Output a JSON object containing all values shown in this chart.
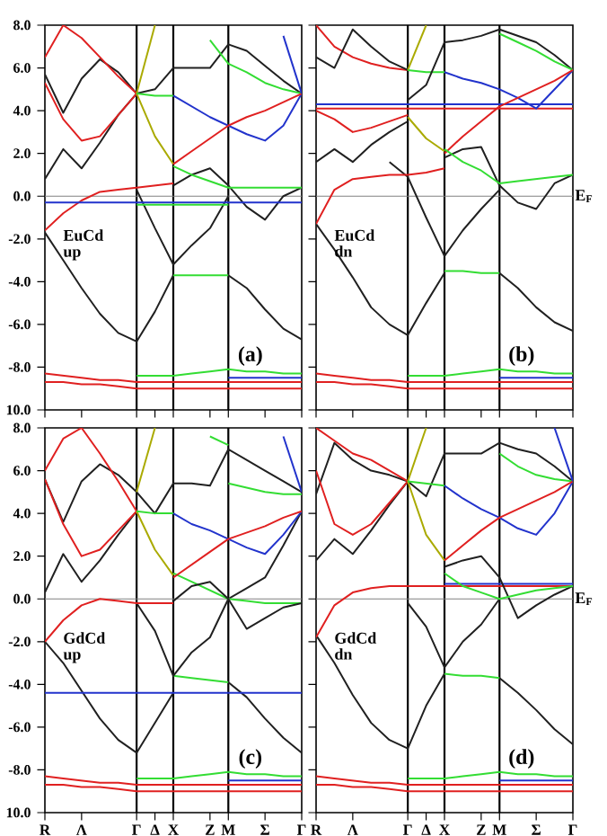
{
  "chart_data": [
    {
      "type": "line",
      "annotations": [
        "EuCd up",
        "(a)"
      ],
      "ylim": [
        -10,
        8
      ],
      "tick_labels": "y",
      "categories": [
        "R",
        null,
        "Λ",
        null,
        null,
        "Γ",
        "Δ",
        "X",
        null,
        "Z",
        "M",
        null,
        "Σ",
        null,
        "Γ"
      ],
      "yticks": [
        {
          "value": 8,
          "label": "8.0"
        },
        {
          "value": 6,
          "label": "6.0"
        },
        {
          "value": 4,
          "label": "4.0"
        },
        {
          "value": 2,
          "label": "2.0"
        },
        {
          "value": 0,
          "label": "0.0"
        },
        {
          "value": -2,
          "label": "-2.0"
        },
        {
          "value": -4,
          "label": "-4.0"
        },
        {
          "value": -6,
          "label": "-6.0"
        },
        {
          "value": -8,
          "label": "-8.0"
        },
        {
          "value": -10,
          "label": "10.0"
        }
      ],
      "ref_lines": [
        {
          "axis": "x",
          "value": "Γ",
          "color": "#000000"
        },
        {
          "axis": "x",
          "value": "X",
          "color": "#000000"
        },
        {
          "axis": "x",
          "value": "M",
          "color": "#000000"
        },
        {
          "axis": "y",
          "value": 0,
          "color": "#808080"
        }
      ],
      "series": [
        {
          "color": "#202020",
          "values": [
            -1.7,
            -3.0,
            -4.3,
            -5.5,
            -6.4,
            -6.8,
            -5.4,
            -3.7,
            null,
            null,
            null,
            null,
            null,
            null,
            null
          ]
        },
        {
          "color": "#33dd33",
          "values": [
            null,
            null,
            null,
            null,
            null,
            null,
            null,
            -3.7,
            -3.7,
            -3.7,
            -3.7,
            null,
            null,
            null,
            null
          ]
        },
        {
          "color": "#202020",
          "values": [
            null,
            null,
            null,
            null,
            null,
            null,
            null,
            null,
            null,
            null,
            -3.7,
            -4.3,
            -5.3,
            -6.2,
            -6.7
          ]
        },
        {
          "color": "#202020",
          "values": [
            null,
            null,
            null,
            null,
            null,
            0.3,
            -1.5,
            -3.2,
            -2.3,
            -1.5,
            0.0,
            null,
            null,
            null,
            null
          ]
        },
        {
          "color": "#202020",
          "values": [
            null,
            null,
            null,
            null,
            null,
            null,
            null,
            0.5,
            1.0,
            1.3,
            0.5,
            -0.5,
            -1.1,
            0.0,
            0.4
          ]
        },
        {
          "color": "#202020",
          "values": [
            5.7,
            3.9,
            5.5,
            6.4,
            5.8,
            4.8,
            null,
            null,
            null,
            null,
            null,
            null,
            null,
            null,
            null
          ]
        },
        {
          "color": "#202020",
          "values": [
            0.8,
            2.2,
            1.3,
            2.5,
            3.8,
            4.8,
            5.0,
            6.0,
            6.0,
            6.0,
            7.1,
            6.8,
            6.1,
            5.4,
            4.8
          ]
        },
        {
          "color": "#e02020",
          "values": [
            6.5,
            8.0,
            7.4,
            6.5,
            5.6,
            4.8,
            null,
            null,
            null,
            null,
            null,
            null,
            null,
            null,
            null
          ]
        },
        {
          "color": "#e02020",
          "values": [
            5.3,
            3.6,
            2.6,
            2.8,
            3.8,
            4.8,
            null,
            null,
            null,
            null,
            null,
            null,
            null,
            null,
            null
          ]
        },
        {
          "color": "#aaaa00",
          "values": [
            null,
            null,
            null,
            null,
            null,
            4.8,
            8.0,
            null,
            null,
            null,
            null,
            null,
            null,
            null,
            null
          ]
        },
        {
          "color": "#aaaa00",
          "values": [
            null,
            null,
            null,
            null,
            null,
            4.8,
            2.8,
            1.5,
            null,
            null,
            null,
            null,
            null,
            null,
            null
          ]
        },
        {
          "color": "#33dd33",
          "values": [
            null,
            null,
            null,
            null,
            null,
            4.8,
            4.7,
            4.7,
            null,
            null,
            null,
            null,
            null,
            null,
            null
          ]
        },
        {
          "color": "#2233cc",
          "values": [
            null,
            null,
            null,
            null,
            null,
            null,
            null,
            4.7,
            4.2,
            3.7,
            3.3,
            2.9,
            2.6,
            3.3,
            4.8
          ]
        },
        {
          "color": "#33dd33",
          "values": [
            null,
            null,
            null,
            null,
            null,
            null,
            null,
            null,
            null,
            7.3,
            6.2,
            5.8,
            5.3,
            5.0,
            4.8
          ]
        },
        {
          "color": "#e02020",
          "values": [
            null,
            null,
            null,
            null,
            null,
            null,
            null,
            1.5,
            2.1,
            2.7,
            3.3,
            3.7,
            4.0,
            4.4,
            4.8
          ]
        },
        {
          "color": "#33dd33",
          "values": [
            null,
            null,
            null,
            null,
            null,
            null,
            null,
            1.4,
            1.0,
            0.7,
            0.4,
            0.4,
            0.4,
            0.4,
            0.4
          ]
        },
        {
          "color": "#e02020",
          "values": [
            -1.6,
            -0.8,
            -0.2,
            0.2,
            0.3,
            0.4,
            0.5,
            0.6,
            null,
            null,
            null,
            null,
            null,
            null,
            null
          ]
        },
        {
          "color": "#2233cc",
          "values": [
            -0.3,
            -0.3,
            -0.3,
            -0.3,
            -0.3,
            -0.3,
            -0.3,
            -0.3,
            -0.3,
            -0.3,
            -0.3,
            -0.3,
            -0.3,
            -0.3,
            -0.3
          ]
        },
        {
          "color": "#33dd33",
          "values": [
            null,
            null,
            null,
            null,
            null,
            -0.4,
            -0.4,
            -0.4,
            -0.4,
            -0.4,
            -0.4,
            null,
            null,
            null,
            null
          ]
        },
        {
          "color": "#2233cc",
          "values": [
            null,
            null,
            null,
            null,
            null,
            null,
            null,
            null,
            null,
            null,
            null,
            null,
            null,
            7.5,
            4.8
          ]
        },
        {
          "color": "#e02020",
          "values": [
            -8.3,
            -8.4,
            -8.5,
            -8.6,
            -8.6,
            -8.7,
            -8.7,
            -8.7,
            -8.7,
            -8.7,
            -8.7,
            -8.7,
            -8.7,
            -8.7,
            -8.7
          ]
        },
        {
          "color": "#e02020",
          "values": [
            -8.7,
            -8.7,
            -8.8,
            -8.8,
            -8.9,
            -9.0,
            -9.0,
            -9.0,
            -9.0,
            -9.0,
            -9.0,
            -9.0,
            -9.0,
            -9.0,
            -9.0
          ]
        },
        {
          "color": "#33dd33",
          "values": [
            null,
            null,
            null,
            null,
            null,
            -8.4,
            -8.4,
            -8.4,
            -8.3,
            -8.2,
            -8.1,
            -8.2,
            -8.2,
            -8.3,
            -8.3
          ]
        },
        {
          "color": "#2233cc",
          "values": [
            null,
            null,
            null,
            null,
            null,
            null,
            null,
            null,
            null,
            null,
            -8.5,
            -8.5,
            -8.5,
            -8.5,
            -8.5
          ]
        }
      ]
    },
    {
      "type": "line",
      "annotations": [
        "EuCd dn",
        "(b)"
      ],
      "ylim": [
        -10,
        8
      ],
      "tick_labels": false,
      "categories": [
        "R",
        null,
        "Λ",
        null,
        null,
        "Γ",
        "Δ",
        "X",
        null,
        "Z",
        "M",
        null,
        "Σ",
        null,
        "Γ"
      ],
      "yticks": [
        {
          "value": 8,
          "label": null
        },
        {
          "value": 6,
          "label": null
        },
        {
          "value": 4,
          "label": null
        },
        {
          "value": 2,
          "label": null
        },
        {
          "value": 0,
          "label": null
        },
        {
          "value": -2,
          "label": null
        },
        {
          "value": -4,
          "label": null
        },
        {
          "value": -6,
          "label": null
        },
        {
          "value": -8,
          "label": null
        },
        {
          "value": -10,
          "label": null
        }
      ],
      "ref_lines": [
        {
          "axis": "x",
          "value": "Γ",
          "color": "#000000"
        },
        {
          "axis": "x",
          "value": "X",
          "color": "#000000"
        },
        {
          "axis": "x",
          "value": "M",
          "color": "#000000"
        },
        {
          "axis": "y",
          "value": 0,
          "color": "#808080",
          "label": "E$_{F}$"
        }
      ],
      "series": [
        {
          "color": "#202020",
          "values": [
            -1.3,
            -2.5,
            -3.8,
            -5.2,
            -6.0,
            -6.5,
            -5.0,
            -3.6,
            null,
            null,
            null,
            null,
            null,
            null,
            null
          ]
        },
        {
          "color": "#33dd33",
          "values": [
            null,
            null,
            null,
            null,
            null,
            null,
            null,
            -3.5,
            -3.5,
            -3.6,
            -3.6,
            null,
            null,
            null,
            null
          ]
        },
        {
          "color": "#202020",
          "values": [
            null,
            null,
            null,
            null,
            null,
            null,
            null,
            null,
            null,
            null,
            -3.6,
            -4.3,
            -5.2,
            -5.9,
            -6.3
          ]
        },
        {
          "color": "#202020",
          "values": [
            null,
            null,
            null,
            null,
            1.6,
            0.9,
            -1.0,
            -2.8,
            -1.6,
            -0.6,
            0.3,
            null,
            null,
            null,
            null
          ]
        },
        {
          "color": "#e02020",
          "values": [
            -1.3,
            0.3,
            0.8,
            0.9,
            1.0,
            1.0,
            1.1,
            1.3,
            null,
            null,
            null,
            null,
            null,
            null,
            null
          ]
        },
        {
          "color": "#202020",
          "values": [
            1.6,
            2.2,
            1.6,
            2.4,
            3.0,
            3.5,
            null,
            null,
            null,
            null,
            null,
            null,
            null,
            null,
            null
          ]
        },
        {
          "color": "#e02020",
          "values": [
            4.0,
            3.6,
            3.0,
            3.2,
            3.5,
            3.8,
            null,
            null,
            null,
            null,
            null,
            null,
            null,
            null,
            null
          ]
        },
        {
          "color": "#2233cc",
          "values": [
            4.3,
            4.3,
            4.3,
            4.3,
            4.3,
            4.3,
            4.3,
            4.3,
            4.3,
            4.3,
            4.3,
            4.3,
            4.3,
            4.3,
            4.3
          ]
        },
        {
          "color": "#e02020",
          "values": [
            4.1,
            4.1,
            4.1,
            4.1,
            4.1,
            4.1,
            4.1,
            4.1,
            4.1,
            4.1,
            4.1,
            4.1,
            4.1,
            4.1,
            4.1
          ]
        },
        {
          "color": "#e02020",
          "values": [
            8.0,
            7.0,
            6.5,
            6.2,
            6.0,
            5.9,
            null,
            null,
            null,
            null,
            null,
            null,
            null,
            null,
            null
          ]
        },
        {
          "color": "#202020",
          "values": [
            6.5,
            6.0,
            7.8,
            7.0,
            6.3,
            5.9,
            null,
            null,
            null,
            null,
            null,
            null,
            null,
            null,
            null
          ]
        },
        {
          "color": "#aaaa00",
          "values": [
            null,
            null,
            null,
            null,
            null,
            5.9,
            8.0,
            null,
            null,
            null,
            null,
            null,
            null,
            null,
            null
          ]
        },
        {
          "color": "#aaaa00",
          "values": [
            null,
            null,
            null,
            null,
            null,
            3.7,
            2.7,
            2.1,
            null,
            null,
            null,
            null,
            null,
            null,
            null
          ]
        },
        {
          "color": "#33dd33",
          "values": [
            null,
            null,
            null,
            null,
            null,
            5.9,
            5.8,
            5.8,
            null,
            null,
            null,
            null,
            null,
            null,
            null
          ]
        },
        {
          "color": "#2233cc",
          "values": [
            null,
            null,
            null,
            null,
            null,
            null,
            null,
            5.8,
            5.5,
            5.3,
            5.0,
            4.6,
            4.1,
            5.0,
            5.9
          ]
        },
        {
          "color": "#202020",
          "values": [
            null,
            null,
            null,
            null,
            null,
            4.5,
            5.2,
            7.2,
            7.3,
            7.5,
            7.8,
            7.5,
            7.2,
            6.6,
            5.9
          ]
        },
        {
          "color": "#33dd33",
          "values": [
            null,
            null,
            null,
            null,
            null,
            null,
            null,
            null,
            null,
            null,
            7.6,
            7.2,
            6.8,
            6.3,
            5.9
          ]
        },
        {
          "color": "#e02020",
          "values": [
            null,
            null,
            null,
            null,
            null,
            null,
            null,
            2.0,
            2.8,
            3.5,
            4.2,
            4.6,
            5.0,
            5.4,
            5.9
          ]
        },
        {
          "color": "#202020",
          "values": [
            null,
            null,
            null,
            null,
            null,
            null,
            null,
            1.8,
            2.2,
            2.3,
            0.5,
            -0.3,
            -0.6,
            0.6,
            1.0
          ]
        },
        {
          "color": "#33dd33",
          "values": [
            null,
            null,
            null,
            null,
            null,
            null,
            null,
            2.2,
            1.6,
            1.2,
            0.6,
            0.7,
            0.8,
            0.9,
            1.0
          ]
        },
        {
          "color": "#e02020",
          "values": [
            -8.3,
            -8.4,
            -8.5,
            -8.6,
            -8.6,
            -8.7,
            -8.7,
            -8.7,
            -8.7,
            -8.7,
            -8.7,
            -8.7,
            -8.7,
            -8.7,
            -8.7
          ]
        },
        {
          "color": "#e02020",
          "values": [
            -8.7,
            -8.7,
            -8.8,
            -8.8,
            -8.9,
            -9.0,
            -9.0,
            -9.0,
            -9.0,
            -9.0,
            -9.0,
            -9.0,
            -9.0,
            -9.0,
            -9.0
          ]
        },
        {
          "color": "#33dd33",
          "values": [
            null,
            null,
            null,
            null,
            null,
            -8.4,
            -8.4,
            -8.4,
            -8.3,
            -8.2,
            -8.1,
            -8.2,
            -8.2,
            -8.3,
            -8.3
          ]
        },
        {
          "color": "#2233cc",
          "values": [
            null,
            null,
            null,
            null,
            null,
            null,
            null,
            null,
            null,
            null,
            -8.5,
            -8.5,
            -8.5,
            -8.5,
            -8.5
          ]
        }
      ]
    },
    {
      "type": "line",
      "annotations": [
        "GdCd up",
        "(c)"
      ],
      "ylim": [
        -10,
        8
      ],
      "categories": [
        "R",
        null,
        "Λ",
        null,
        null,
        "Γ",
        "Δ",
        "X",
        null,
        "Z",
        "M",
        null,
        "Σ",
        null,
        "Γ"
      ],
      "yticks": [
        {
          "value": 8,
          "label": "8.0"
        },
        {
          "value": 6,
          "label": "6.0"
        },
        {
          "value": 4,
          "label": "4.0"
        },
        {
          "value": 2,
          "label": "2.0"
        },
        {
          "value": 0,
          "label": "0.0"
        },
        {
          "value": -2,
          "label": "-2.0"
        },
        {
          "value": -4,
          "label": "-4.0"
        },
        {
          "value": -6,
          "label": "-6.0"
        },
        {
          "value": -8,
          "label": "-8.0"
        },
        {
          "value": -10,
          "label": "10.0"
        }
      ],
      "ref_lines": [
        {
          "axis": "x",
          "value": "Γ",
          "color": "#000000"
        },
        {
          "axis": "x",
          "value": "X",
          "color": "#000000"
        },
        {
          "axis": "x",
          "value": "M",
          "color": "#000000"
        },
        {
          "axis": "y",
          "value": 0,
          "color": "#808080"
        }
      ],
      "series": [
        {
          "color": "#202020",
          "values": [
            -2.0,
            -3.0,
            -4.3,
            -5.6,
            -6.6,
            -7.2,
            -5.8,
            -4.4,
            null,
            null,
            null,
            null,
            null,
            null,
            null
          ]
        },
        {
          "color": "#33dd33",
          "values": [
            null,
            null,
            null,
            null,
            null,
            null,
            null,
            -3.6,
            -3.7,
            -3.8,
            -3.9,
            null,
            null,
            null,
            null
          ]
        },
        {
          "color": "#202020",
          "values": [
            null,
            null,
            null,
            null,
            null,
            null,
            null,
            null,
            null,
            null,
            -3.9,
            -4.6,
            -5.6,
            -6.5,
            -7.2
          ]
        },
        {
          "color": "#202020",
          "values": [
            null,
            null,
            null,
            null,
            null,
            -0.2,
            -1.5,
            -3.6,
            -2.5,
            -1.8,
            0.0,
            0.5,
            1.0,
            2.5,
            4.1
          ]
        },
        {
          "color": "#e02020",
          "values": [
            -2.0,
            -1.0,
            -0.3,
            0.0,
            -0.1,
            -0.2,
            -0.2,
            -0.2,
            null,
            null,
            null,
            null,
            null,
            null,
            null
          ]
        },
        {
          "color": "#2233cc",
          "values": [
            -4.4,
            -4.4,
            -4.4,
            -4.4,
            -4.4,
            -4.4,
            -4.4,
            -4.4,
            -4.4,
            -4.4,
            -4.4,
            -4.4,
            -4.4,
            -4.4,
            -4.4
          ]
        },
        {
          "color": "#202020",
          "values": [
            0.3,
            2.1,
            0.8,
            1.8,
            3.0,
            4.1,
            null,
            null,
            null,
            null,
            null,
            null,
            null,
            null,
            null
          ]
        },
        {
          "color": "#202020",
          "values": [
            5.6,
            3.6,
            5.5,
            6.3,
            5.8,
            5.0,
            4.0,
            5.4,
            5.4,
            5.3,
            7.0,
            6.5,
            6.0,
            5.5,
            5.0
          ]
        },
        {
          "color": "#e02020",
          "values": [
            6.0,
            7.5,
            8.0,
            6.8,
            5.5,
            4.1,
            null,
            null,
            null,
            null,
            null,
            null,
            null,
            null,
            null
          ]
        },
        {
          "color": "#e02020",
          "values": [
            5.6,
            3.5,
            2.0,
            2.3,
            3.2,
            4.1,
            null,
            null,
            null,
            null,
            null,
            null,
            null,
            null,
            null
          ]
        },
        {
          "color": "#aaaa00",
          "values": [
            null,
            null,
            null,
            null,
            null,
            5.0,
            8.0,
            null,
            null,
            null,
            null,
            null,
            null,
            null,
            null
          ]
        },
        {
          "color": "#aaaa00",
          "values": [
            null,
            null,
            null,
            null,
            null,
            4.1,
            2.3,
            1.1,
            null,
            null,
            null,
            null,
            null,
            null,
            null
          ]
        },
        {
          "color": "#33dd33",
          "values": [
            null,
            null,
            null,
            null,
            null,
            4.1,
            4.0,
            4.0,
            null,
            null,
            null,
            null,
            null,
            null,
            null
          ]
        },
        {
          "color": "#2233cc",
          "values": [
            null,
            null,
            null,
            null,
            null,
            null,
            null,
            4.0,
            3.5,
            3.2,
            2.8,
            2.4,
            2.1,
            3.0,
            4.1
          ]
        },
        {
          "color": "#33dd33",
          "values": [
            null,
            null,
            null,
            null,
            null,
            null,
            null,
            null,
            null,
            null,
            5.4,
            5.2,
            5.0,
            4.9,
            4.9
          ]
        },
        {
          "color": "#33dd33",
          "values": [
            null,
            null,
            null,
            null,
            null,
            null,
            null,
            1.2,
            0.8,
            0.4,
            0.0,
            -0.1,
            -0.2,
            -0.2,
            -0.2
          ]
        },
        {
          "color": "#e02020",
          "values": [
            null,
            null,
            null,
            null,
            null,
            null,
            null,
            1.0,
            1.6,
            2.2,
            2.8,
            3.1,
            3.4,
            3.8,
            4.1
          ]
        },
        {
          "color": "#202020",
          "values": [
            null,
            null,
            null,
            null,
            null,
            null,
            null,
            -0.1,
            0.6,
            0.8,
            0.0,
            -1.4,
            -0.9,
            -0.4,
            -0.2
          ]
        },
        {
          "color": "#33dd33",
          "values": [
            null,
            null,
            null,
            null,
            null,
            null,
            null,
            null,
            null,
            7.6,
            7.2,
            null,
            null,
            null,
            null
          ]
        },
        {
          "color": "#2233cc",
          "values": [
            null,
            null,
            null,
            null,
            null,
            null,
            null,
            null,
            null,
            null,
            null,
            null,
            null,
            7.6,
            5.0
          ]
        },
        {
          "color": "#e02020",
          "values": [
            -8.3,
            -8.4,
            -8.5,
            -8.6,
            -8.6,
            -8.7,
            -8.7,
            -8.7,
            -8.7,
            -8.7,
            -8.7,
            -8.7,
            -8.7,
            -8.7,
            -8.7
          ]
        },
        {
          "color": "#e02020",
          "values": [
            -8.7,
            -8.7,
            -8.8,
            -8.8,
            -8.9,
            -9.0,
            -9.0,
            -9.0,
            -9.0,
            -9.0,
            -9.0,
            -9.0,
            -9.0,
            -9.0,
            -9.0
          ]
        },
        {
          "color": "#33dd33",
          "values": [
            null,
            null,
            null,
            null,
            null,
            -8.4,
            -8.4,
            -8.4,
            -8.3,
            -8.2,
            -8.1,
            -8.2,
            -8.2,
            -8.3,
            -8.3
          ]
        },
        {
          "color": "#2233cc",
          "values": [
            null,
            null,
            null,
            null,
            null,
            null,
            null,
            null,
            null,
            null,
            -8.5,
            -8.5,
            -8.5,
            -8.5,
            -8.5
          ]
        }
      ]
    },
    {
      "type": "line",
      "annotations": [
        "GdCd dn",
        "(d)"
      ],
      "ylim": [
        -10,
        8
      ],
      "tick_labels": "x",
      "categories": [
        "R",
        null,
        "Λ",
        null,
        null,
        "Γ",
        "Δ",
        "X",
        null,
        "Z",
        "M",
        null,
        "Σ",
        null,
        "Γ"
      ],
      "yticks": [
        {
          "value": 8,
          "label": null
        },
        {
          "value": 6,
          "label": null
        },
        {
          "value": 4,
          "label": null
        },
        {
          "value": 2,
          "label": null
        },
        {
          "value": 0,
          "label": null
        },
        {
          "value": -2,
          "label": null
        },
        {
          "value": -4,
          "label": null
        },
        {
          "value": -6,
          "label": null
        },
        {
          "value": -8,
          "label": null
        },
        {
          "value": -10,
          "label": null
        }
      ],
      "ref_lines": [
        {
          "axis": "x",
          "value": "Γ",
          "color": "#000000"
        },
        {
          "axis": "x",
          "value": "X",
          "color": "#000000"
        },
        {
          "axis": "x",
          "value": "M",
          "color": "#000000"
        },
        {
          "axis": "y",
          "value": 0,
          "color": "#808080",
          "label": "E$_{F}$"
        }
      ],
      "series": [
        {
          "color": "#202020",
          "values": [
            -1.7,
            -3.0,
            -4.5,
            -5.8,
            -6.6,
            -7.0,
            -5.0,
            -3.5,
            null,
            null,
            null,
            null,
            null,
            null,
            null
          ]
        },
        {
          "color": "#33dd33",
          "values": [
            null,
            null,
            null,
            null,
            null,
            null,
            null,
            -3.5,
            -3.6,
            -3.6,
            -3.7,
            null,
            null,
            null,
            null
          ]
        },
        {
          "color": "#202020",
          "values": [
            null,
            null,
            null,
            null,
            null,
            null,
            null,
            null,
            null,
            null,
            -3.7,
            -4.4,
            -5.2,
            -6.1,
            -6.8
          ]
        },
        {
          "color": "#202020",
          "values": [
            null,
            null,
            null,
            null,
            null,
            -0.2,
            -1.3,
            -3.2,
            -2.0,
            -1.2,
            0.0,
            null,
            null,
            null,
            null
          ]
        },
        {
          "color": "#e02020",
          "values": [
            -1.8,
            -0.3,
            0.3,
            0.5,
            0.6,
            0.6,
            0.6,
            0.6,
            0.6,
            0.6,
            0.6,
            0.6,
            0.6,
            0.6,
            0.6
          ]
        },
        {
          "color": "#2233cc",
          "values": [
            null,
            null,
            null,
            null,
            null,
            null,
            null,
            0.7,
            0.7,
            0.7,
            0.7,
            0.7,
            0.7,
            0.7,
            0.7
          ]
        },
        {
          "color": "#202020",
          "values": [
            1.8,
            2.8,
            2.1,
            3.2,
            4.4,
            5.5,
            4.8,
            6.8,
            6.8,
            6.8,
            7.3,
            7.0,
            6.8,
            6.2,
            5.5
          ]
        },
        {
          "color": "#202020",
          "values": [
            4.9,
            7.3,
            6.5,
            6.0,
            5.8,
            5.5,
            null,
            null,
            null,
            null,
            null,
            null,
            null,
            null,
            null
          ]
        },
        {
          "color": "#e02020",
          "values": [
            8.0,
            7.4,
            6.8,
            6.5,
            6.0,
            5.5,
            null,
            null,
            null,
            null,
            null,
            null,
            null,
            null,
            null
          ]
        },
        {
          "color": "#e02020",
          "values": [
            6.0,
            3.5,
            3.0,
            3.5,
            4.5,
            5.5,
            null,
            null,
            null,
            null,
            null,
            null,
            null,
            null,
            null
          ]
        },
        {
          "color": "#aaaa00",
          "values": [
            null,
            null,
            null,
            null,
            null,
            5.5,
            8.0,
            null,
            null,
            null,
            null,
            null,
            null,
            null,
            null
          ]
        },
        {
          "color": "#aaaa00",
          "values": [
            null,
            null,
            null,
            null,
            null,
            5.5,
            3.0,
            1.8,
            null,
            null,
            null,
            null,
            null,
            null,
            null
          ]
        },
        {
          "color": "#33dd33",
          "values": [
            null,
            null,
            null,
            null,
            null,
            5.5,
            5.4,
            5.3,
            null,
            null,
            null,
            null,
            null,
            null,
            null
          ]
        },
        {
          "color": "#2233cc",
          "values": [
            null,
            null,
            null,
            null,
            null,
            null,
            null,
            5.3,
            4.7,
            4.2,
            3.8,
            3.3,
            3.0,
            4.0,
            5.5
          ]
        },
        {
          "color": "#33dd33",
          "values": [
            null,
            null,
            null,
            null,
            null,
            null,
            null,
            null,
            null,
            null,
            6.8,
            6.2,
            5.8,
            5.6,
            5.5
          ]
        },
        {
          "color": "#e02020",
          "values": [
            null,
            null,
            null,
            null,
            null,
            null,
            null,
            1.8,
            2.5,
            3.2,
            3.8,
            4.2,
            4.6,
            5.0,
            5.5
          ]
        },
        {
          "color": "#202020",
          "values": [
            null,
            null,
            null,
            null,
            null,
            null,
            null,
            1.5,
            1.8,
            2.0,
            1.0,
            -0.9,
            -0.3,
            0.2,
            0.6
          ]
        },
        {
          "color": "#33dd33",
          "values": [
            null,
            null,
            null,
            null,
            null,
            null,
            null,
            1.2,
            0.6,
            0.3,
            0.0,
            0.2,
            0.4,
            0.5,
            0.6
          ]
        },
        {
          "color": "#2233cc",
          "values": [
            null,
            null,
            null,
            null,
            null,
            null,
            null,
            null,
            null,
            null,
            null,
            null,
            null,
            8.0,
            5.5
          ]
        },
        {
          "color": "#e02020",
          "values": [
            -8.3,
            -8.4,
            -8.5,
            -8.6,
            -8.6,
            -8.7,
            -8.7,
            -8.7,
            -8.7,
            -8.7,
            -8.7,
            -8.7,
            -8.7,
            -8.7,
            -8.7
          ]
        },
        {
          "color": "#e02020",
          "values": [
            -8.7,
            -8.7,
            -8.8,
            -8.8,
            -8.9,
            -9.0,
            -9.0,
            -9.0,
            -9.0,
            -9.0,
            -9.0,
            -9.0,
            -9.0,
            -9.0,
            -9.0
          ]
        },
        {
          "color": "#33dd33",
          "values": [
            null,
            null,
            null,
            null,
            null,
            -8.4,
            -8.4,
            -8.4,
            -8.3,
            -8.2,
            -8.1,
            -8.2,
            -8.2,
            -8.3,
            -8.3
          ]
        },
        {
          "color": "#2233cc",
          "values": [
            null,
            null,
            null,
            null,
            null,
            null,
            null,
            null,
            null,
            null,
            -8.5,
            -8.5,
            -8.5,
            -8.5,
            -8.5
          ]
        }
      ]
    }
  ]
}
